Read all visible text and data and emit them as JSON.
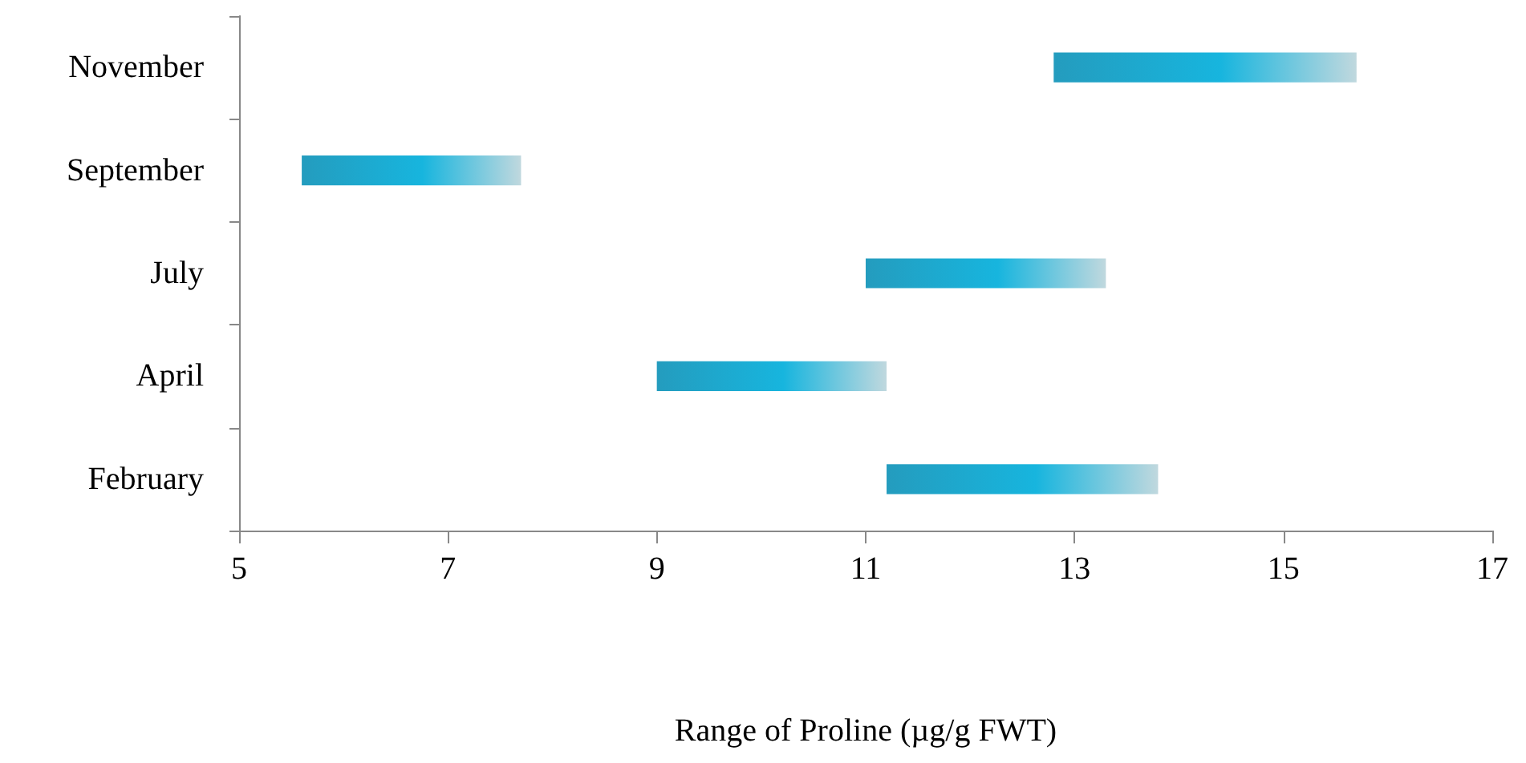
{
  "chart_data": {
    "type": "bar",
    "orientation": "horizontal",
    "xlabel": "Range of Proline (µg/g FWT)",
    "categories": [
      "November",
      "September",
      "July",
      "April",
      "February"
    ],
    "base": [
      12.8,
      5.6,
      11.0,
      9.0,
      11.2
    ],
    "values": [
      2.9,
      2.1,
      2.3,
      2.2,
      2.6
    ],
    "color": "#17b5de",
    "xlim": [
      5,
      17
    ],
    "xticks": [
      5,
      7,
      9,
      11,
      13,
      15,
      17
    ],
    "grid": false
  }
}
